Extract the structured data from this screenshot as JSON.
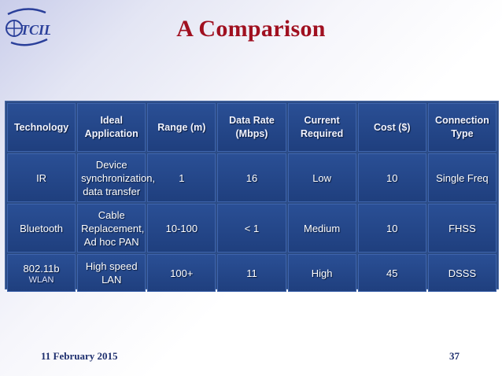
{
  "slide": {
    "title": "A Comparison",
    "date": "11 February 2015",
    "page_number": "37"
  },
  "logo": {
    "name": "TCIL logo",
    "text": "TCIL"
  },
  "table": {
    "headers": [
      "Technology",
      "Ideal Application",
      "Range (m)",
      "Data Rate (Mbps)",
      "Current Required",
      "Cost ($)",
      "Connection Type"
    ],
    "rows": [
      {
        "technology": "IR",
        "technology_sub": "",
        "application": "Device synchronization, data transfer",
        "range": "1",
        "rate": "16",
        "current": "Low",
        "cost": "10",
        "connection": "Single Freq"
      },
      {
        "technology": "Bluetooth",
        "technology_sub": "",
        "application": "Cable Replacement, Ad hoc PAN",
        "range": "10-100",
        "rate": "< 1",
        "current": "Medium",
        "cost": "10",
        "connection": "FHSS"
      },
      {
        "technology": "802.11b",
        "technology_sub": "WLAN",
        "application": "High speed LAN",
        "range": "100+",
        "rate": "11",
        "current": "High",
        "cost": "45",
        "connection": "DSSS"
      }
    ]
  },
  "colors": {
    "title": "#a01020",
    "cell": "#2a4f95",
    "footer": "#1e2f6e"
  }
}
